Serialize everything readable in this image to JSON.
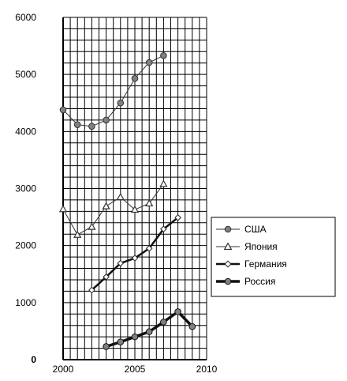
{
  "chart_data": {
    "type": "line",
    "title": "",
    "xlabel": "",
    "ylabel": "",
    "xlim": [
      2000,
      2010
    ],
    "ylim": [
      0,
      6000
    ],
    "grid": true,
    "legend_position": "right",
    "x_ticks": [
      "2000",
      "2005",
      "2010"
    ],
    "y_ticks": [
      "0",
      "1000",
      "2000",
      "3000",
      "4000",
      "5000",
      "6000"
    ],
    "series": [
      {
        "name": "США",
        "marker": "circle",
        "color": "#808080",
        "line_weight": "thin",
        "points": [
          [
            2000,
            4380
          ],
          [
            2001,
            4120
          ],
          [
            2002,
            4090
          ],
          [
            2003,
            4200
          ],
          [
            2004,
            4500
          ],
          [
            2005,
            4930
          ],
          [
            2006,
            5210
          ],
          [
            2007,
            5330
          ]
        ]
      },
      {
        "name": "Япония",
        "marker": "triangle",
        "color": "#808080",
        "line_weight": "thin",
        "points": [
          [
            2000,
            2640
          ],
          [
            2001,
            2190
          ],
          [
            2002,
            2330
          ],
          [
            2003,
            2690
          ],
          [
            2004,
            2850
          ],
          [
            2005,
            2630
          ],
          [
            2006,
            2740
          ],
          [
            2007,
            3080
          ]
        ]
      },
      {
        "name": "Германия",
        "marker": "diamond",
        "color": "#808080",
        "line_weight": "medium",
        "points": [
          [
            2002,
            1220
          ],
          [
            2003,
            1450
          ],
          [
            2004,
            1690
          ],
          [
            2005,
            1780
          ],
          [
            2006,
            1950
          ],
          [
            2007,
            2290
          ],
          [
            2008,
            2490
          ]
        ]
      },
      {
        "name": "Россия",
        "marker": "circle",
        "color": "#808080",
        "line_weight": "heavy",
        "points": [
          [
            2003,
            230
          ],
          [
            2004,
            310
          ],
          [
            2005,
            400
          ],
          [
            2006,
            490
          ],
          [
            2007,
            660
          ],
          [
            2008,
            840
          ],
          [
            2009,
            580
          ]
        ]
      }
    ]
  }
}
